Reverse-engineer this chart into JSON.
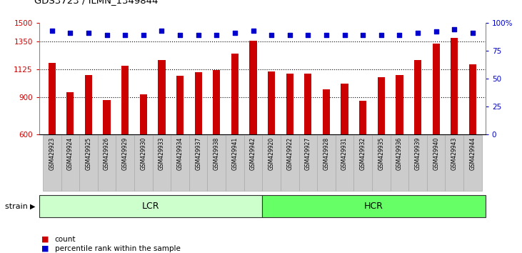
{
  "title": "GDS3723 / ILMN_1349844",
  "categories": [
    "GSM429923",
    "GSM429924",
    "GSM429925",
    "GSM429926",
    "GSM429929",
    "GSM429930",
    "GSM429933",
    "GSM429934",
    "GSM429937",
    "GSM429938",
    "GSM429941",
    "GSM429942",
    "GSM429920",
    "GSM429922",
    "GSM429927",
    "GSM429928",
    "GSM429931",
    "GSM429932",
    "GSM429935",
    "GSM429936",
    "GSM429939",
    "GSM429940",
    "GSM429943",
    "GSM429944"
  ],
  "bar_values": [
    1175,
    940,
    1080,
    875,
    1155,
    920,
    1200,
    1070,
    1100,
    1115,
    1250,
    1355,
    1105,
    1090,
    1090,
    960,
    1010,
    870,
    1060,
    1080,
    1200,
    1330,
    1380,
    1165
  ],
  "percentile_values": [
    93,
    91,
    91,
    89,
    89,
    89,
    93,
    89,
    89,
    89,
    91,
    93,
    89,
    89,
    89,
    89,
    89,
    89,
    89,
    89,
    91,
    92,
    94,
    91
  ],
  "groups": [
    {
      "label": "LCR",
      "start": 0,
      "end": 12,
      "color": "#ccffcc"
    },
    {
      "label": "HCR",
      "start": 12,
      "end": 24,
      "color": "#66ff66"
    }
  ],
  "bar_color": "#cc0000",
  "dot_color": "#0000cc",
  "ylim_left": [
    600,
    1500
  ],
  "ylim_right": [
    0,
    100
  ],
  "yticks_left": [
    600,
    900,
    1125,
    1350,
    1500
  ],
  "yticks_right": [
    0,
    25,
    50,
    75,
    100
  ],
  "grid_values": [
    900,
    1125,
    1350
  ],
  "legend_count_label": "count",
  "legend_percentile_label": "percentile rank within the sample",
  "strain_label": "strain"
}
